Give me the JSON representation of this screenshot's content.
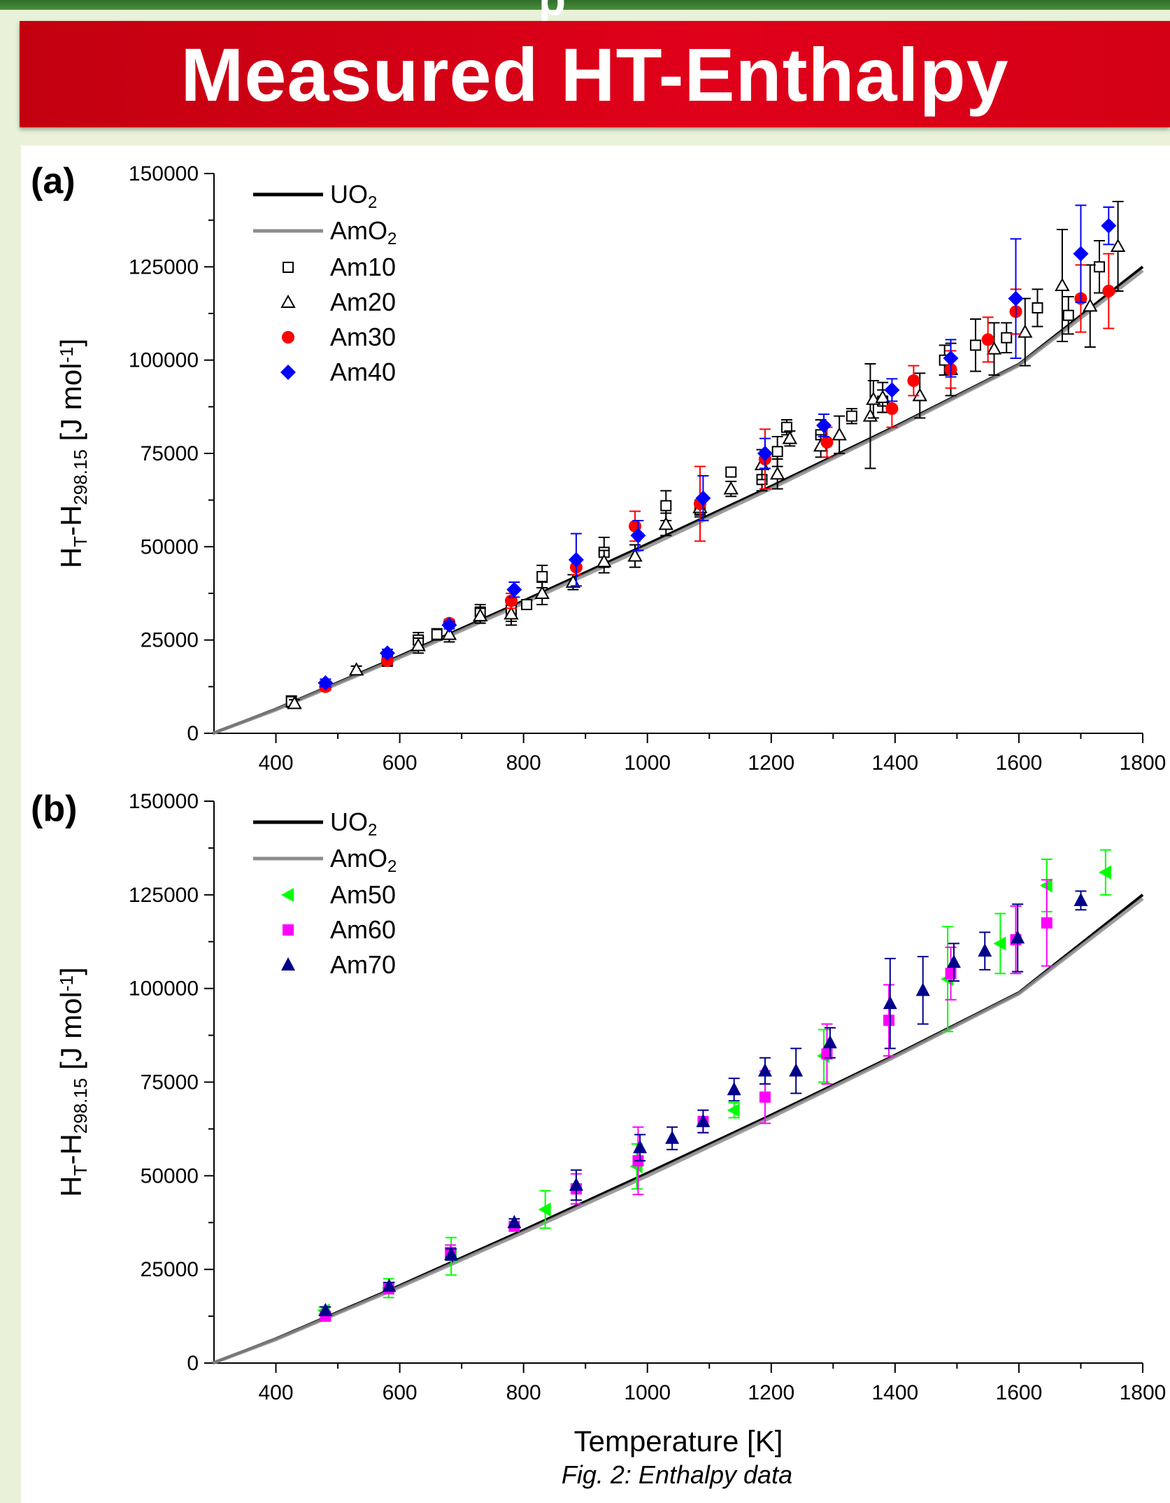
{
  "header": {
    "strip_letter": "p",
    "title": "Measured HT-Enthalpy"
  },
  "caption": "Fig. 2: Enthalpy data",
  "colors": {
    "banner": "#d9001a",
    "background": "#e9f2d9",
    "UO2": "#000000",
    "AmO2": "#8c8c8c",
    "Am10": "#000000",
    "Am20": "#000000",
    "Am30": "#ff0000",
    "Am40": "#0000ff",
    "Am50": "#00ff00",
    "Am60": "#ff00ff",
    "Am70": "#00008b"
  },
  "chart_data": [
    {
      "panel": "(a)",
      "type": "scatter",
      "xlabel": "",
      "ylabel_parts": [
        "H",
        "T",
        "-H",
        "298.15",
        " [J mol",
        "-1",
        "]"
      ],
      "xlim": [
        300,
        1800
      ],
      "ylim": [
        0,
        150000
      ],
      "xticks": [
        400,
        600,
        800,
        1000,
        1200,
        1400,
        1600,
        1800
      ],
      "yticks": [
        0,
        25000,
        50000,
        75000,
        100000,
        125000,
        150000
      ],
      "legend_position": "top-left",
      "lines": [
        {
          "name_parts": [
            "UO",
            "2"
          ],
          "x": [
            298,
            400,
            600,
            800,
            1000,
            1200,
            1400,
            1600,
            1800
          ],
          "y": [
            0,
            6500,
            20700,
            35500,
            50700,
            66200,
            82200,
            98900,
            125000
          ]
        },
        {
          "name_parts": [
            "AmO",
            "2"
          ],
          "x": [
            298,
            400,
            600,
            800,
            1000,
            1200,
            1400,
            1600,
            1800
          ],
          "y": [
            0,
            6300,
            20300,
            34900,
            50000,
            65600,
            81800,
            98600,
            124000
          ]
        }
      ],
      "series": [
        {
          "name": "Am10",
          "marker": "square-open",
          "x": [
            425,
            580,
            630,
            660,
            730,
            780,
            805,
            830,
            930,
            1030,
            1085,
            1135,
            1185,
            1210,
            1225,
            1280,
            1330,
            1380,
            1480,
            1530,
            1580,
            1630,
            1680,
            1730
          ],
          "y": [
            8500,
            19500,
            25000,
            26500,
            32500,
            33000,
            34500,
            42000,
            48500,
            61000,
            60000,
            70000,
            68000,
            75500,
            82000,
            80000,
            85000,
            89000,
            100000,
            104000,
            106000,
            114000,
            112000,
            125000
          ],
          "err": [
            1500,
            1500,
            2000,
            1500,
            2000,
            3000,
            1000,
            3000,
            4000,
            4000,
            2000,
            1000,
            3000,
            4000,
            2000,
            4000,
            2000,
            3000,
            4000,
            7000,
            4000,
            5000,
            5000,
            7000
          ]
        },
        {
          "name": "Am20",
          "marker": "triangle-open",
          "x": [
            430,
            530,
            630,
            680,
            730,
            780,
            830,
            880,
            930,
            980,
            1030,
            1085,
            1135,
            1185,
            1210,
            1230,
            1280,
            1310,
            1360,
            1365,
            1380,
            1440,
            1490,
            1560,
            1610,
            1670,
            1715,
            1760
          ],
          "y": [
            8000,
            17000,
            23500,
            26500,
            31500,
            32000,
            37500,
            40500,
            46000,
            47500,
            56000,
            60500,
            65500,
            72000,
            69500,
            79000,
            77000,
            80000,
            85000,
            89500,
            90000,
            90500,
            97500,
            103000,
            107500,
            120000,
            114500,
            130500
          ],
          "err": [
            1000,
            1000,
            2000,
            2000,
            2000,
            3000,
            3000,
            2000,
            3000,
            3000,
            3000,
            2000,
            2000,
            4000,
            4000,
            2000,
            3000,
            5000,
            14000,
            5000,
            4000,
            6000,
            7000,
            7000,
            9000,
            15000,
            11000,
            12000
          ]
        },
        {
          "name": "Am30",
          "marker": "circle",
          "x": [
            480,
            580,
            680,
            780,
            885,
            980,
            1085,
            1190,
            1290,
            1395,
            1430,
            1490,
            1550,
            1595,
            1700,
            1745
          ],
          "y": [
            12500,
            19500,
            29500,
            35500,
            44500,
            55500,
            61500,
            73500,
            78000,
            87000,
            94500,
            97500,
            105500,
            113000,
            116500,
            118500
          ],
          "err": [
            1000,
            1000,
            1000,
            2000,
            2000,
            4000,
            10000,
            8000,
            4000,
            5000,
            4000,
            5000,
            6000,
            6000,
            9000,
            10000
          ]
        },
        {
          "name": "Am40",
          "marker": "diamond",
          "x": [
            480,
            580,
            680,
            785,
            885,
            985,
            1090,
            1190,
            1285,
            1395,
            1490,
            1595,
            1700,
            1745
          ],
          "y": [
            13500,
            21500,
            29000,
            38500,
            46500,
            53000,
            63000,
            75000,
            82500,
            92000,
            100500,
            116500,
            128500,
            136000
          ],
          "err": [
            1000,
            1000,
            1000,
            2000,
            7000,
            4000,
            6000,
            4000,
            3000,
            3000,
            5000,
            16000,
            13000,
            5000
          ]
        }
      ]
    },
    {
      "panel": "(b)",
      "type": "scatter",
      "xlabel": "Temperature [K]",
      "ylabel_parts": [
        "H",
        "T",
        "-H",
        "298.15",
        " [J mol",
        "-1",
        "]"
      ],
      "xlim": [
        300,
        1800
      ],
      "ylim": [
        0,
        150000
      ],
      "xticks": [
        400,
        600,
        800,
        1000,
        1200,
        1400,
        1600,
        1800
      ],
      "yticks": [
        0,
        25000,
        50000,
        75000,
        100000,
        125000,
        150000
      ],
      "legend_position": "top-left",
      "lines": [
        {
          "name_parts": [
            "UO",
            "2"
          ],
          "x": [
            298,
            400,
            600,
            800,
            1000,
            1200,
            1400,
            1600,
            1800
          ],
          "y": [
            0,
            6500,
            20700,
            35500,
            50700,
            66200,
            82200,
            98900,
            125000
          ]
        },
        {
          "name_parts": [
            "AmO",
            "2"
          ],
          "x": [
            298,
            400,
            600,
            800,
            1000,
            1200,
            1400,
            1600,
            1800
          ],
          "y": [
            0,
            6300,
            20300,
            34900,
            50000,
            65600,
            81800,
            98600,
            124000
          ]
        }
      ],
      "series": [
        {
          "name": "Am50",
          "marker": "triangle-left",
          "x": [
            478,
            582,
            683,
            835,
            983,
            1140,
            1285,
            1485,
            1570,
            1645,
            1740
          ],
          "y": [
            14000,
            20000,
            28500,
            41000,
            52500,
            67500,
            82000,
            102500,
            112000,
            127500,
            131000
          ],
          "err": [
            1000,
            2500,
            5000,
            5000,
            6000,
            2000,
            7000,
            14000,
            8000,
            7000,
            6000
          ]
        },
        {
          "name": "Am60",
          "marker": "square",
          "x": [
            480,
            582,
            682,
            785,
            885,
            985,
            1090,
            1190,
            1290,
            1390,
            1490,
            1595,
            1645
          ],
          "y": [
            12500,
            20000,
            29500,
            36500,
            46500,
            54000,
            64500,
            71000,
            82500,
            91500,
            104000,
            113000,
            117500
          ],
          "err": [
            1000,
            1500,
            2000,
            1000,
            4000,
            9000,
            3000,
            7000,
            8000,
            9500,
            7000,
            9000,
            11500
          ]
        },
        {
          "name": "Am70",
          "marker": "triangle-up",
          "x": [
            480,
            583,
            683,
            785,
            885,
            988,
            1040,
            1090,
            1140,
            1190,
            1240,
            1295,
            1392,
            1445,
            1495,
            1545,
            1598,
            1700
          ],
          "y": [
            14000,
            20500,
            29000,
            37500,
            47500,
            57500,
            60000,
            64500,
            73000,
            78000,
            78000,
            85500,
            96000,
            99500,
            107000,
            110000,
            113500,
            123500
          ],
          "err": [
            1000,
            1000,
            1500,
            1000,
            4000,
            3500,
            3000,
            3000,
            3000,
            3500,
            6000,
            4000,
            12000,
            9000,
            5000,
            5000,
            9000,
            2500
          ]
        }
      ]
    }
  ]
}
